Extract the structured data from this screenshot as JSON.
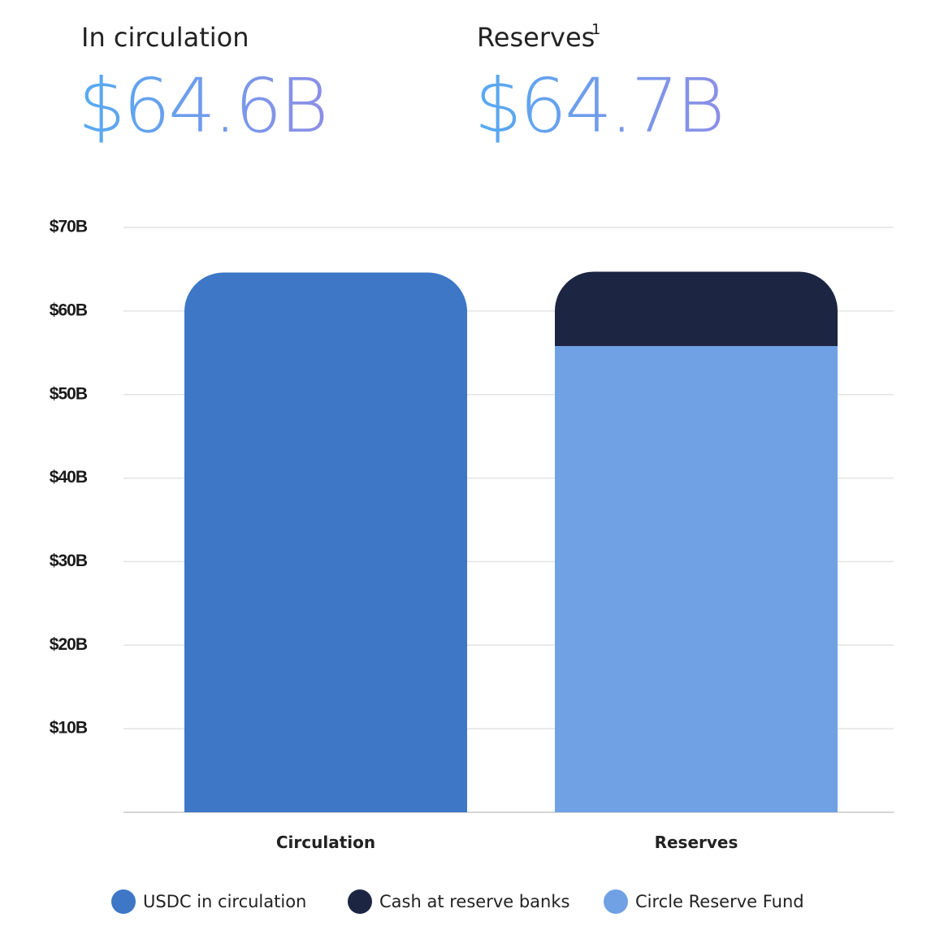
{
  "header": {
    "circulation_label": "In circulation",
    "circulation_value": "$64.6B",
    "reserves_label": "Reserves",
    "reserves_note": "1",
    "reserves_value": "$64.7B"
  },
  "chart_data": {
    "type": "stacked_bar",
    "categories": [
      "Circulation",
      "Reserves"
    ],
    "series": [
      {
        "name": "USDC in circulation",
        "color": "#3d77c6",
        "values": [
          64.6,
          null
        ]
      },
      {
        "name": "Cash at reserve banks",
        "color": "#1c2541",
        "values": [
          null,
          8.9
        ]
      },
      {
        "name": "Circle Reserve Fund",
        "color": "#6fa1e4",
        "values": [
          null,
          55.8
        ]
      }
    ],
    "ylim": [
      0,
      70
    ],
    "yticks": [
      {
        "value": 10,
        "label": "$10B"
      },
      {
        "value": 20,
        "label": "$20B"
      },
      {
        "value": 30,
        "label": "$30B"
      },
      {
        "value": 40,
        "label": "$40B"
      },
      {
        "value": 50,
        "label": "$50B"
      },
      {
        "value": 60,
        "label": "$60B"
      },
      {
        "value": 70,
        "label": "$70B"
      }
    ],
    "grid": true
  }
}
